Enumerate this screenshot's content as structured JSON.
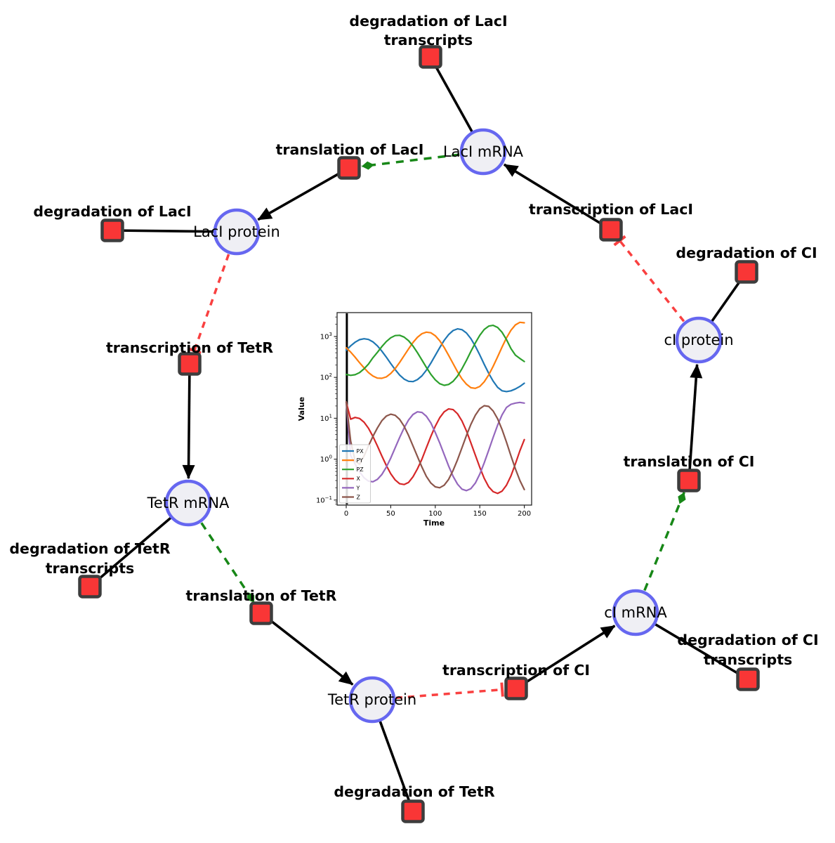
{
  "diagram": {
    "colors": {
      "species_fill": "#efeff4",
      "species_stroke": "#6667f0",
      "reaction_fill": "#f93636",
      "reaction_stroke": "#3d3d3d",
      "edge_color": "#000000",
      "activation_color": "#178717",
      "inhibition_color": "#f94040"
    },
    "species": [
      {
        "id": "laci-mrna",
        "label": "LacI mRNA"
      },
      {
        "id": "laci-protein",
        "label": "LacI protein"
      },
      {
        "id": "tetr-mrna",
        "label": "TetR mRNA"
      },
      {
        "id": "tetr-protein",
        "label": "TetR protein"
      },
      {
        "id": "ci-mrna",
        "label": "cI mRNA"
      },
      {
        "id": "ci-protein",
        "label": "cI protein"
      }
    ],
    "reactions": [
      {
        "id": "degradation-laci-transcripts",
        "lines": [
          "degradation of LacI",
          "transcripts"
        ]
      },
      {
        "id": "translation-laci",
        "lines": [
          "translation of LacI"
        ]
      },
      {
        "id": "transcription-laci",
        "lines": [
          "transcription of LacI"
        ]
      },
      {
        "id": "degradation-laci",
        "lines": [
          "degradation of LacI"
        ]
      },
      {
        "id": "transcription-tetr",
        "lines": [
          "transcription of TetR"
        ]
      },
      {
        "id": "degradation-ci",
        "lines": [
          "degradation of CI"
        ]
      },
      {
        "id": "translation-ci",
        "lines": [
          "translation of CI"
        ]
      },
      {
        "id": "degradation-tetr-transcripts",
        "lines": [
          "degradation of TetR",
          "transcripts"
        ]
      },
      {
        "id": "translation-tetr",
        "lines": [
          "translation of TetR"
        ]
      },
      {
        "id": "degradation-tetr",
        "lines": [
          "degradation of TetR"
        ]
      },
      {
        "id": "transcription-ci",
        "lines": [
          "transcription of CI"
        ]
      },
      {
        "id": "degradation-ci-transcripts",
        "lines": [
          "degradation of CI",
          "transcripts"
        ]
      }
    ],
    "edge_semantics": {
      "black_solid": "reaction product / consumption",
      "green_dashed_diamond": "modifier (mRNA drives translation)",
      "red_dashed_tee": "inhibition (protein represses transcription)"
    }
  },
  "chart_data": {
    "type": "line",
    "xlabel": "Time",
    "ylabel": "Value",
    "yscale": "log",
    "xlim": [
      -10,
      210
    ],
    "ylim": [
      0.07,
      4000
    ],
    "xticks": [
      0,
      50,
      100,
      150,
      200
    ],
    "ytick_exponents": [
      -1,
      0,
      1,
      2,
      3
    ],
    "vline_x": 0.7,
    "legend_position": "lower left",
    "t": [
      0,
      5,
      10,
      15,
      20,
      25,
      30,
      35,
      40,
      45,
      50,
      55,
      60,
      65,
      70,
      75,
      80,
      85,
      90,
      95,
      100,
      105,
      110,
      115,
      120,
      125,
      130,
      135,
      140,
      145,
      150,
      155,
      160,
      165,
      170,
      175,
      180,
      185,
      190,
      195,
      200
    ],
    "series": [
      {
        "name": "PX",
        "color": "#1f77b4",
        "values": [
          458,
          592,
          727,
          836,
          881,
          846,
          740,
          590,
          440,
          313,
          218,
          155,
          114,
          91,
          80,
          79,
          88,
          109,
          150,
          223,
          345,
          533,
          803,
          1114,
          1397,
          1541,
          1470,
          1218,
          888,
          578,
          353,
          209,
          126,
          81,
          57,
          47,
          45,
          47,
          52,
          60,
          72
        ]
      },
      {
        "name": "PY",
        "color": "#ff7f0e",
        "values": [
          530,
          415,
          311,
          229,
          171,
          131,
          108,
          96,
          95,
          103,
          125,
          164,
          232,
          340,
          498,
          714,
          957,
          1170,
          1279,
          1231,
          1045,
          789,
          539,
          347,
          217,
          137,
          92,
          68,
          56,
          54,
          60,
          78,
          115,
          186,
          319,
          553,
          925,
          1420,
          1919,
          2222,
          2163
        ]
      },
      {
        "name": "PZ",
        "color": "#2ca02c",
        "values": [
          118,
          112,
          116,
          131,
          162,
          212,
          301,
          409,
          565,
          752,
          933,
          1054,
          1069,
          970,
          789,
          583,
          402,
          266,
          176,
          119,
          87,
          70,
          64,
          67,
          80,
          108,
          163,
          260,
          430,
          698,
          1069,
          1483,
          1799,
          1879,
          1667,
          1267,
          839,
          505,
          350,
          290,
          245
        ]
      },
      {
        "name": "X",
        "color": "#d62728",
        "values": [
          25,
          9.5,
          10.5,
          9.9,
          8.0,
          5.7,
          3.6,
          2.1,
          1.2,
          0.7,
          0.44,
          0.31,
          0.25,
          0.24,
          0.27,
          0.37,
          0.58,
          1.0,
          1.9,
          3.6,
          6.4,
          10.3,
          14.4,
          16.9,
          16.3,
          12.9,
          8.6,
          4.9,
          2.5,
          1.25,
          0.63,
          0.34,
          0.21,
          0.16,
          0.145,
          0.165,
          0.23,
          0.39,
          0.77,
          1.6,
          3.0
        ]
      },
      {
        "name": "Y",
        "color": "#9467bd",
        "values": [
          25,
          1.24,
          0.76,
          0.49,
          0.35,
          0.29,
          0.28,
          0.32,
          0.42,
          0.64,
          1.06,
          1.9,
          3.4,
          5.8,
          9.1,
          12.4,
          14.4,
          13.9,
          11.2,
          7.7,
          4.5,
          2.5,
          1.3,
          0.68,
          0.38,
          0.245,
          0.185,
          0.17,
          0.19,
          0.26,
          0.43,
          0.81,
          1.65,
          3.4,
          6.8,
          12.1,
          18.4,
          22.0,
          23.5,
          24.5,
          23.5
        ]
      },
      {
        "name": "Z",
        "color": "#8c564b",
        "values": [
          25,
          2.8,
          0.9,
          0.75,
          1.2,
          2.1,
          3.6,
          5.8,
          8.7,
          11.3,
          12.6,
          11.8,
          9.4,
          6.4,
          3.8,
          2.1,
          1.16,
          0.64,
          0.38,
          0.26,
          0.21,
          0.2,
          0.23,
          0.32,
          0.53,
          0.97,
          1.9,
          3.8,
          7.1,
          11.9,
          17.1,
          20.3,
          19.5,
          15.1,
          9.7,
          5.3,
          2.6,
          1.2,
          0.58,
          0.3,
          0.18
        ]
      }
    ]
  }
}
